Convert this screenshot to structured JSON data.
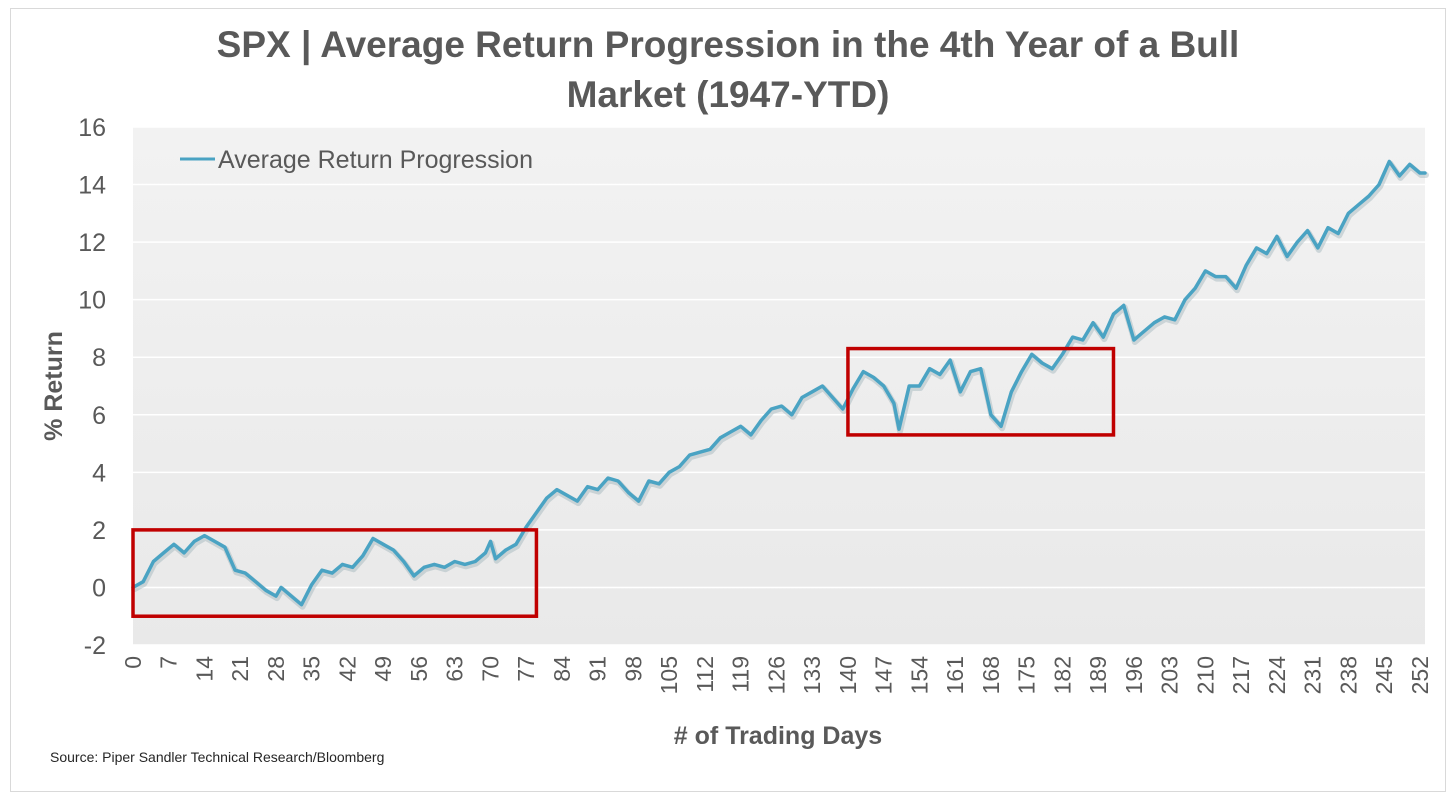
{
  "chart_data": {
    "type": "line",
    "title_lines": [
      "SPX | Average Return Progression in the 4th Year of a Bull",
      "Market (1947-YTD)"
    ],
    "xlabel": "# of Trading Days",
    "ylabel": "% Return",
    "xlim": [
      0,
      253
    ],
    "ylim": [
      -2,
      16
    ],
    "yticks": [
      -2,
      0,
      2,
      4,
      6,
      8,
      10,
      12,
      14,
      16
    ],
    "xticks": [
      0,
      7,
      14,
      21,
      28,
      35,
      42,
      49,
      56,
      63,
      70,
      77,
      84,
      91,
      98,
      105,
      112,
      119,
      126,
      133,
      140,
      147,
      154,
      161,
      168,
      175,
      182,
      189,
      196,
      203,
      210,
      217,
      224,
      231,
      238,
      245,
      252
    ],
    "grid": true,
    "legend": "top-left",
    "series": [
      {
        "name": "Average Return Progression",
        "color": "#4aa3c3",
        "x": [
          0,
          2,
          4,
          6,
          8,
          10,
          12,
          14,
          16,
          18,
          20,
          22,
          24,
          26,
          28,
          29,
          31,
          33,
          35,
          37,
          39,
          41,
          43,
          45,
          47,
          49,
          51,
          53,
          55,
          57,
          59,
          61,
          63,
          65,
          67,
          69,
          70,
          71,
          73,
          75,
          77,
          79,
          81,
          83,
          85,
          87,
          89,
          91,
          93,
          95,
          97,
          99,
          101,
          103,
          105,
          107,
          109,
          111,
          113,
          115,
          117,
          119,
          121,
          123,
          125,
          127,
          129,
          131,
          133,
          135,
          137,
          139,
          141,
          143,
          145,
          147,
          149,
          150,
          152,
          154,
          156,
          158,
          160,
          162,
          164,
          166,
          168,
          170,
          172,
          174,
          176,
          178,
          180,
          182,
          184,
          186,
          188,
          190,
          192,
          194,
          196,
          198,
          200,
          202,
          204,
          206,
          208,
          210,
          212,
          214,
          216,
          218,
          220,
          222,
          224,
          226,
          228,
          230,
          232,
          234,
          236,
          238,
          240,
          242,
          244,
          246,
          248,
          250,
          252,
          253
        ],
        "values": [
          0.0,
          0.2,
          0.9,
          1.2,
          1.5,
          1.2,
          1.6,
          1.8,
          1.6,
          1.4,
          0.6,
          0.5,
          0.2,
          -0.1,
          -0.3,
          0.0,
          -0.3,
          -0.6,
          0.1,
          0.6,
          0.5,
          0.8,
          0.7,
          1.1,
          1.7,
          1.5,
          1.3,
          0.9,
          0.4,
          0.7,
          0.8,
          0.7,
          0.9,
          0.8,
          0.9,
          1.2,
          1.6,
          1.0,
          1.3,
          1.5,
          2.1,
          2.6,
          3.1,
          3.4,
          3.2,
          3.0,
          3.5,
          3.4,
          3.8,
          3.7,
          3.3,
          3.0,
          3.7,
          3.6,
          4.0,
          4.2,
          4.6,
          4.7,
          4.8,
          5.2,
          5.4,
          5.6,
          5.3,
          5.8,
          6.2,
          6.3,
          6.0,
          6.6,
          6.8,
          7.0,
          6.6,
          6.2,
          6.9,
          7.5,
          7.3,
          7.0,
          6.4,
          5.5,
          7.0,
          7.0,
          7.6,
          7.4,
          7.9,
          6.8,
          7.5,
          7.6,
          6.0,
          5.6,
          6.8,
          7.5,
          8.1,
          7.8,
          7.6,
          8.1,
          8.7,
          8.6,
          9.2,
          8.7,
          9.5,
          9.8,
          8.6,
          8.9,
          9.2,
          9.4,
          9.3,
          10.0,
          10.4,
          11.0,
          10.8,
          10.8,
          10.4,
          11.2,
          11.8,
          11.6,
          12.2,
          11.5,
          12.0,
          12.4,
          11.8,
          12.5,
          12.3,
          13.0,
          13.3,
          13.6,
          14.0,
          14.8,
          14.3,
          14.7,
          14.4,
          14.4
        ]
      }
    ],
    "annotations": [
      {
        "shape": "rectangle",
        "color": "#c00000",
        "x_range": [
          0,
          79
        ],
        "y_range": [
          -1.0,
          2.0
        ]
      },
      {
        "shape": "rectangle",
        "color": "#c00000",
        "x_range": [
          140,
          192
        ],
        "y_range": [
          5.3,
          8.3
        ]
      }
    ],
    "source": "Source: Piper Sandler Technical Research/Bloomberg"
  }
}
